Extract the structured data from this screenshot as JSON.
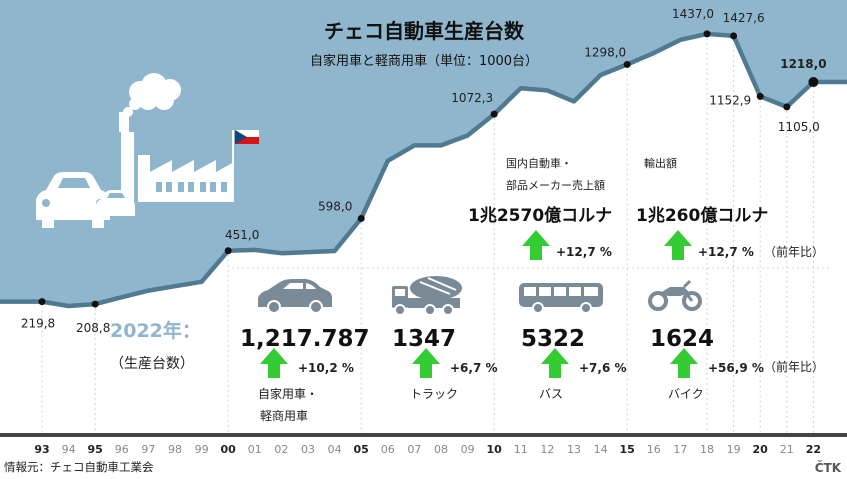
{
  "title": "チェコ自動車生産台数",
  "subtitle": "自家用車と軽商用車（単位：1000台）",
  "chart_data": {
    "type": "area",
    "title": "チェコ自動車生産台数",
    "subtitle": "自家用車と軽商用車（単位：1000台）",
    "unit": "1000台",
    "x_ticks": [
      "93",
      "94",
      "95",
      "96",
      "97",
      "98",
      "99",
      "00",
      "01",
      "02",
      "03",
      "04",
      "05",
      "06",
      "07",
      "08",
      "09",
      "10",
      "11",
      "12",
      "13",
      "14",
      "15",
      "16",
      "17",
      "18",
      "19",
      "20",
      "21",
      "22"
    ],
    "x_bold_ticks": [
      "93",
      "95",
      "00",
      "05",
      "10",
      "15",
      "20",
      "22"
    ],
    "series": [
      {
        "values": [
          219.8,
          200,
          208.8,
          240,
          270,
          290,
          310,
          451.0,
          455,
          440,
          445,
          450,
          598.0,
          860,
          930,
          930,
          975,
          1072.3,
          1190,
          1180,
          1130,
          1250,
          1298.0,
          1350,
          1410,
          1437.0,
          1427.6,
          1152.9,
          1105.0,
          1218.0
        ],
        "labeled_points": [
          {
            "x": "93",
            "label": "219,8"
          },
          {
            "x": "95",
            "label": "208,8"
          },
          {
            "x": "00",
            "label": "451,0"
          },
          {
            "x": "05",
            "label": "598,0"
          },
          {
            "x": "10",
            "label": "1072,3"
          },
          {
            "x": "15",
            "label": "1298,0"
          },
          {
            "x": "18",
            "label": "1437,0"
          },
          {
            "x": "19",
            "label": "1427,6"
          },
          {
            "x": "20",
            "label": "1152,9"
          },
          {
            "x": "21",
            "label": "1105,0"
          },
          {
            "x": "22",
            "label": "1218,0"
          }
        ]
      }
    ]
  },
  "year_block": {
    "title": "2022年：",
    "subtitle": "（生産台数）"
  },
  "stats": [
    {
      "value": "1,217.787",
      "change": "+10,2 %",
      "label1": "自家用車・",
      "label2": "軽商用車",
      "icon": "car-icon"
    },
    {
      "value": "1347",
      "change": "+6,7 %",
      "label1": "トラック",
      "label2": "",
      "icon": "truck-icon"
    },
    {
      "value": "5322",
      "change": "+7,6 %",
      "label1": "バス",
      "label2": "",
      "icon": "bus-icon"
    },
    {
      "value": "1624",
      "change": "+56,9 %",
      "label1": "バイク",
      "label2": "",
      "icon": "motorcycle-icon"
    }
  ],
  "revenue": [
    {
      "label1": "国内自動車・",
      "label2": "部品メーカー売上額",
      "value": "1兆2570億コルナ",
      "change": "+12,7 %"
    },
    {
      "label1": "輸出額",
      "label2": "",
      "value": "1兆260億コルナ",
      "change": "+12,7 %"
    }
  ],
  "yoy_label": "（前年比）",
  "source": "情報元：チェコ自動車工業会",
  "agency": "ČTK",
  "colors": {
    "sky": "#8fb6cc",
    "line": "#4f7a91",
    "arrow": "#33cc33",
    "icon_gray": "#7a8a96",
    "axis": "#444444"
  }
}
